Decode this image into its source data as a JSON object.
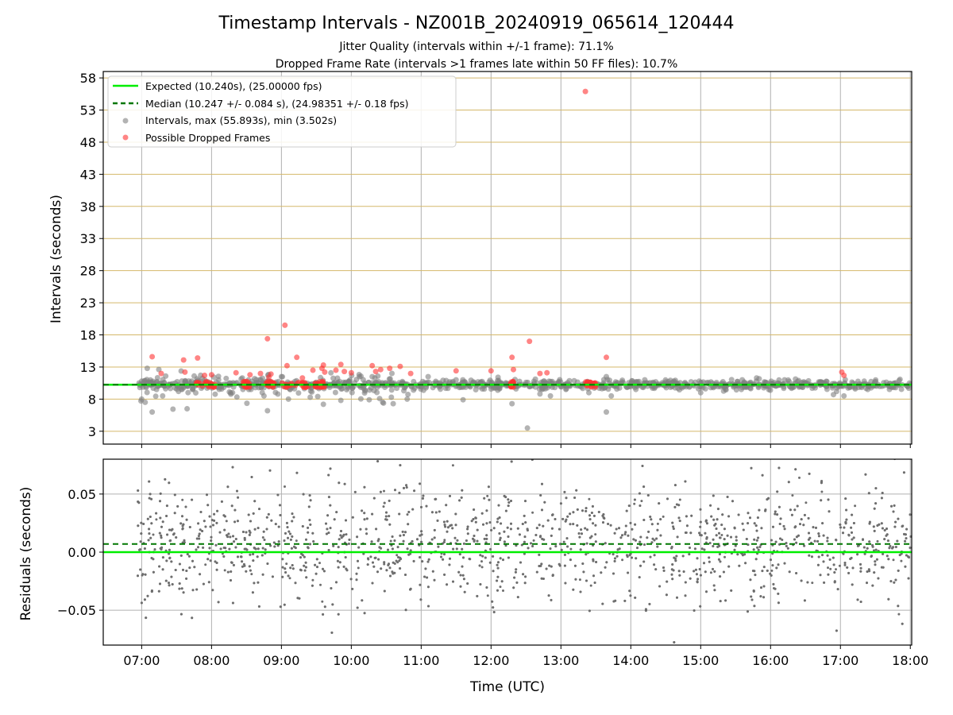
{
  "figure": {
    "title": "Timestamp Intervals - NZ001B_20240919_065614_120444",
    "subtitle_line1": "Jitter Quality (intervals within +/-1 frame): 71.1%",
    "subtitle_line2": "Dropped Frame Rate (intervals >1 frames late within 50 FF files): 10.7%"
  },
  "colors": {
    "expected_line": "#00ee00",
    "median_line": "#007700",
    "intervals": "#808080",
    "dropped": "#ff3333",
    "hgrid_top": "#d4b86a",
    "grid": "#b0b0b0",
    "residual_points": "#6e6e6e"
  },
  "chart_data": [
    {
      "id": "intervals",
      "type": "scatter",
      "xlabel": "",
      "ylabel": "Intervals (seconds)",
      "xlim": [
        6.45,
        18.02
      ],
      "ylim": [
        1,
        59
      ],
      "yticks": [
        3,
        8,
        13,
        18,
        23,
        28,
        33,
        38,
        43,
        48,
        53,
        58
      ],
      "xticks": [
        7,
        8,
        9,
        10,
        11,
        12,
        13,
        14,
        15,
        16,
        17,
        18
      ],
      "grid": true,
      "legend_position": "upper-left",
      "lines": {
        "expected": {
          "label": "Expected (10.240s), (25.00000 fps)",
          "y": 10.24,
          "style": "solid"
        },
        "median": {
          "label": "Median (10.247 +/- 0.084 s), (24.98351 +/- 0.18 fps)",
          "y": 10.247,
          "style": "dashed"
        }
      },
      "intervals_series": {
        "label": "Intervals, max (55.893s), min (3.502s)",
        "x_start": 6.94,
        "x_end": 18.01,
        "y_center": 10.24,
        "outliers": [
          [
            7.15,
            6.0
          ],
          [
            7.0,
            8.0
          ],
          [
            7.05,
            7.5
          ],
          [
            7.08,
            12.8
          ],
          [
            7.3,
            8.5
          ],
          [
            7.65,
            6.5
          ],
          [
            8.1,
            11.0
          ],
          [
            8.3,
            9.0
          ],
          [
            8.8,
            6.2
          ],
          [
            8.75,
            8.5
          ],
          [
            9.0,
            11.5
          ],
          [
            9.1,
            8.0
          ],
          [
            9.6,
            7.2
          ],
          [
            9.85,
            7.8
          ],
          [
            10.3,
            11.5
          ],
          [
            10.45,
            7.5
          ],
          [
            10.6,
            7.3
          ],
          [
            10.8,
            8.0
          ],
          [
            11.1,
            11.5
          ],
          [
            11.5,
            11.0
          ],
          [
            11.6,
            7.9
          ],
          [
            12.1,
            11.4
          ],
          [
            12.3,
            7.3
          ],
          [
            12.52,
            3.502
          ],
          [
            12.7,
            8.8
          ],
          [
            12.85,
            8.5
          ],
          [
            13.4,
            9.0
          ],
          [
            13.65,
            11.5
          ],
          [
            13.65,
            6.0
          ],
          [
            13.72,
            8.5
          ],
          [
            14.2,
            11.0
          ],
          [
            15.8,
            11.3
          ],
          [
            16.2,
            11.0
          ],
          [
            16.9,
            8.7
          ],
          [
            17.05,
            8.5
          ],
          [
            15.0,
            9.0
          ]
        ]
      },
      "dropped_series": {
        "label": "Possible Dropped Frames",
        "clusters": [
          [
            7.78,
            8.05
          ],
          [
            8.45,
            8.55
          ],
          [
            8.78,
            8.9
          ],
          [
            9.0,
            9.4
          ],
          [
            9.48,
            9.62
          ],
          [
            12.28,
            12.32
          ],
          [
            13.35,
            13.5
          ]
        ],
        "points": [
          [
            7.15,
            14.6
          ],
          [
            7.28,
            12.0
          ],
          [
            7.6,
            14.1
          ],
          [
            7.62,
            12.2
          ],
          [
            7.8,
            14.4
          ],
          [
            7.9,
            11.7
          ],
          [
            8.0,
            11.8
          ],
          [
            8.35,
            12.1
          ],
          [
            8.55,
            11.8
          ],
          [
            8.7,
            12.0
          ],
          [
            8.8,
            17.4
          ],
          [
            8.82,
            11.4
          ],
          [
            8.85,
            11.9
          ],
          [
            9.05,
            19.5
          ],
          [
            9.08,
            13.2
          ],
          [
            9.22,
            14.5
          ],
          [
            9.3,
            11.3
          ],
          [
            9.45,
            12.5
          ],
          [
            9.58,
            12.8
          ],
          [
            9.6,
            13.3
          ],
          [
            9.62,
            12.2
          ],
          [
            9.78,
            12.5
          ],
          [
            9.85,
            13.4
          ],
          [
            9.9,
            12.3
          ],
          [
            10.0,
            12.1
          ],
          [
            10.3,
            13.2
          ],
          [
            10.35,
            12.3
          ],
          [
            10.42,
            12.6
          ],
          [
            10.55,
            12.8
          ],
          [
            10.7,
            13.1
          ],
          [
            10.85,
            12.0
          ],
          [
            11.5,
            12.4
          ],
          [
            12.0,
            12.4
          ],
          [
            12.3,
            14.5
          ],
          [
            12.32,
            12.6
          ],
          [
            12.55,
            17.0
          ],
          [
            12.7,
            12.0
          ],
          [
            12.8,
            12.1
          ],
          [
            13.35,
            55.893
          ],
          [
            13.65,
            14.5
          ],
          [
            17.02,
            12.2
          ],
          [
            17.05,
            11.7
          ]
        ]
      }
    },
    {
      "id": "residuals",
      "type": "scatter",
      "xlabel": "Time (UTC)",
      "ylabel": "Residuals (seconds)",
      "xlim": [
        6.45,
        18.02
      ],
      "ylim": [
        -0.08,
        0.08
      ],
      "yticks": [
        -0.05,
        0.0,
        0.05
      ],
      "ytick_labels": [
        "−0.05",
        "0.00",
        "0.05"
      ],
      "xticks": [
        7,
        8,
        9,
        10,
        11,
        12,
        13,
        14,
        15,
        16,
        17,
        18
      ],
      "xtick_labels": [
        "07:00",
        "08:00",
        "09:00",
        "10:00",
        "11:00",
        "12:00",
        "13:00",
        "14:00",
        "15:00",
        "16:00",
        "17:00",
        "18:00"
      ],
      "grid": true,
      "lines": {
        "expected": {
          "y": 0.0,
          "style": "solid"
        },
        "median": {
          "y": 0.007,
          "style": "dashed"
        }
      },
      "points": {
        "x_start": 6.94,
        "x_end": 18.01,
        "count": 2600,
        "spread": 0.025
      }
    }
  ]
}
